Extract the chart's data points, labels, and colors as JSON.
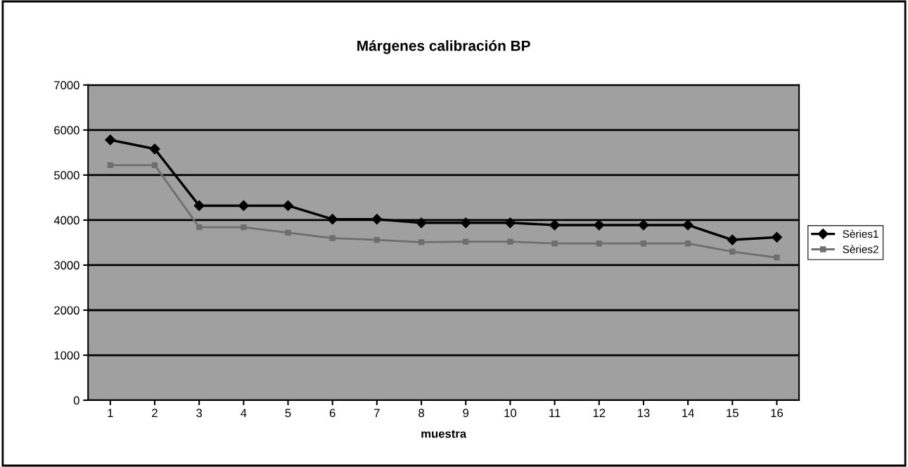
{
  "chart_data": {
    "type": "line",
    "title": "Márgenes calibración BP",
    "xlabel": "muestra",
    "categories": [
      "1",
      "2",
      "3",
      "4",
      "5",
      "6",
      "7",
      "8",
      "9",
      "10",
      "11",
      "12",
      "13",
      "14",
      "15",
      "16"
    ],
    "series": [
      {
        "name": "Sèries1",
        "color": "#000000",
        "marker": "diamond",
        "values": [
          5780,
          5580,
          4320,
          4320,
          4320,
          4020,
          4020,
          3940,
          3940,
          3940,
          3890,
          3890,
          3890,
          3890,
          3560,
          3620
        ]
      },
      {
        "name": "Sèries2",
        "color": "#6e6e6e",
        "marker": "square",
        "values": [
          5220,
          5220,
          3840,
          3840,
          3720,
          3600,
          3560,
          3510,
          3520,
          3520,
          3480,
          3480,
          3480,
          3480,
          3300,
          3170
        ]
      }
    ],
    "ylim": [
      0,
      7000
    ],
    "yticks": [
      0,
      1000,
      2000,
      3000,
      4000,
      5000,
      6000,
      7000
    ],
    "grid": "y",
    "legend": "right"
  }
}
